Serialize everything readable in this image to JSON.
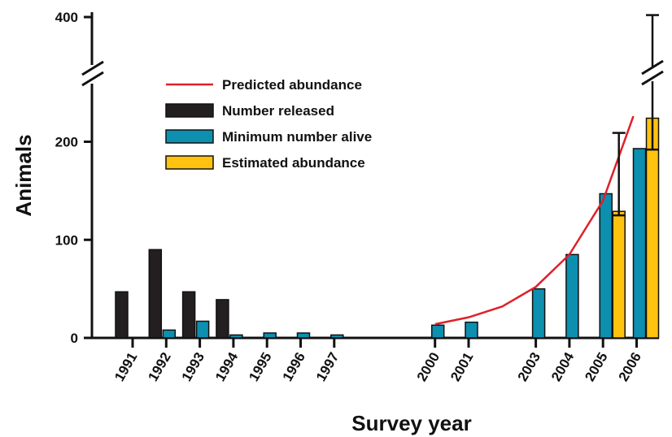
{
  "chart_data": {
    "type": "bar",
    "title": "",
    "xlabel": "Survey year",
    "ylabel": "Animals",
    "ylim": [
      0,
      400
    ],
    "axis_break": {
      "between": [
        230,
        380
      ]
    },
    "y_ticks": [
      "0",
      "100",
      "200",
      "400"
    ],
    "y_tick_values": [
      0,
      100,
      200,
      400
    ],
    "categories": [
      "1991",
      "1992",
      "1993",
      "1994",
      "1995",
      "1996",
      "1997",
      "2000",
      "2001",
      "2003",
      "2004",
      "2005",
      "2006"
    ],
    "series": [
      {
        "name": "Number released",
        "color": "#231f20",
        "values": [
          47,
          90,
          47,
          39,
          0,
          0,
          0,
          0,
          0,
          0,
          0,
          0,
          0
        ]
      },
      {
        "name": "Minimum number alive",
        "color": "#0d8fb0",
        "values": [
          0,
          8,
          17,
          3,
          5,
          5,
          3,
          13,
          16,
          50,
          85,
          147,
          193
        ]
      },
      {
        "name": "Estimated abundance",
        "color": "#ffc20e",
        "values": [
          null,
          null,
          null,
          null,
          null,
          null,
          null,
          null,
          null,
          null,
          null,
          129,
          224
        ],
        "error_bars": [
          null,
          null,
          null,
          null,
          null,
          null,
          null,
          null,
          null,
          null,
          null,
          {
            "low": 125,
            "high": 209
          },
          {
            "low": 192,
            "high": 402
          }
        ]
      },
      {
        "name": "Predicted abundance",
        "color": "#e0202a",
        "kind": "line",
        "x": [
          2000,
          2001,
          2002,
          2003,
          2004,
          2005,
          2006
        ],
        "values": [
          14,
          21,
          32,
          52,
          85,
          140,
          226
        ]
      }
    ],
    "legend": {
      "placement": "top-left"
    },
    "grid": false
  }
}
